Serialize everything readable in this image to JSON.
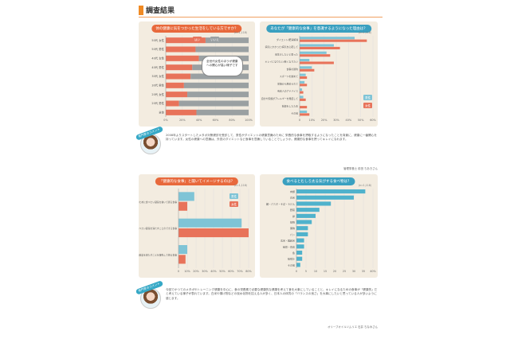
{
  "header": {
    "title": "調査結果"
  },
  "panels": {
    "q1": {
      "title": "体の健康に気をつかった生活をしている方ですか？",
      "unit": "（n=1,118）"
    },
    "q2": {
      "title": "あなたが「健康的な食事」を意識するようになった理由は？",
      "unit": "（n=1,118）"
    },
    "q3": {
      "title": "「健康的な食事」と聞いてイメージするのは？",
      "unit": "（n=1,118）"
    },
    "q4": {
      "title": "食べるとむしろ太る気がする食べ物は？",
      "unit": "（n=1,118）"
    }
  },
  "callout": {
    "text": "全世代女性のほうが健康への関心が高い様子です"
  },
  "comment1": {
    "badge": "専門家のコメント",
    "text": "2008年よりスタートしたメタボ対策健診を受診して、男性がダイエットの健康意識のために 栄養的な食事を摂取するようになったことを背景に、健康に一番関心を持っています。女性の健康への意識は、外見のダイエットなど食事を意識していることでしょうか。健康的な食事を摂ってキレイになれます。",
    "signature": "管理栄養士 前田 ちあきさん"
  },
  "comment2": {
    "badge": "専門家のコメント",
    "text": "今回でかつてのメタボやトレーニング健康を中心に、食の栄養素で必要な健康的な健康を考えて食を大事にしていることと、キレイになるための食事が「健康的」だと考えている様子が表れています。白米や揚げ物などの炭水化物を控える人が多く、日本人の体質の「バランスの良さ」を大事にしたいと思っている人が多いように感じます。",
    "signature": "オリーブオイルソムリエ 石井 ちなみさん"
  },
  "chart_data": [
    {
      "type": "bar",
      "title": "体の健康に気をつかった生活をしている方ですか？",
      "orientation": "horizontal-stacked",
      "categories": [
        "50代 女性",
        "50代 男性",
        "40代 女性",
        "40代 男性",
        "30代 女性",
        "30代 男性",
        "20代 女性",
        "20代 男性",
        "全体"
      ],
      "series": [
        {
          "name": "はい",
          "color": "#e8735a",
          "values": [
            48,
            36,
            40,
            32,
            30,
            22,
            26,
            16,
            37
          ]
        },
        {
          "name": "いいえ",
          "color": "#9aa0a2",
          "values": [
            52,
            64,
            60,
            68,
            70,
            78,
            74,
            84,
            63
          ]
        }
      ],
      "ticks": [
        "0%",
        "20%",
        "40%",
        "60%",
        "80%",
        "100%"
      ],
      "xlim": [
        0,
        100
      ]
    },
    {
      "type": "bar",
      "title": "あなたが「健康的な食事」を意識するようになった理由は？",
      "orientation": "horizontal-grouped",
      "categories": [
        "ダイエット/肥満解消",
        "病気にかかった/病気を心配して",
        "長生きしたいと思った",
        "キレイになりたい/若くなりたい",
        "食事の節約",
        "スポーツを始めて",
        "家族から薦められて",
        "有名人のアドバイス",
        "自分や家族がアレルギーを発症して",
        "妊娠をしたため",
        "その他"
      ],
      "series": [
        {
          "name": "男性",
          "color": "#7fc4d6",
          "values": [
            45,
            28,
            22,
            8,
            10,
            5,
            4,
            2,
            3,
            0,
            6
          ]
        },
        {
          "name": "女性",
          "color": "#e8735a",
          "values": [
            55,
            33,
            25,
            28,
            12,
            6,
            6,
            3,
            5,
            6,
            8
          ]
        }
      ],
      "ticks": [
        "0",
        "10%",
        "20%",
        "30%",
        "40%",
        "50%",
        "60%"
      ],
      "xlim": [
        0,
        60
      ]
    },
    {
      "type": "bar",
      "title": "「健康的な食事」と聞いてイメージするのは？",
      "orientation": "horizontal-grouped",
      "categories": [
        "体の健康のために食べたい副菜を抜いて摂る食事",
        "体の健康にもなり食べたい副菜を満たすことのできる食事",
        "体の健康よりも食べたい副菜を満たすことを優先して摂る食事"
      ],
      "series": [
        {
          "name": "男性",
          "color": "#7fc4d6",
          "values": [
            18,
            72,
            10
          ]
        },
        {
          "name": "女性",
          "color": "#e8735a",
          "values": [
            10,
            80,
            8
          ]
        }
      ],
      "ticks": [
        "0",
        "10%",
        "20%",
        "30%",
        "40%",
        "50%",
        "60%",
        "70%",
        "80%"
      ],
      "xlim": [
        0,
        80
      ]
    },
    {
      "type": "bar",
      "title": "食べるとむしろ太る気がする食べ物は？",
      "orientation": "horizontal",
      "categories": [
        "肉類",
        "白米",
        "麺・パスタ・そば・うどん",
        "野菜",
        "卵",
        "揚物",
        "果物",
        "パン",
        "玄米・雑穀米",
        "納豆・豆腐",
        "魚",
        "味噌汁",
        "その他"
      ],
      "series": [
        {
          "name": "全体",
          "color": "#4fb2cc",
          "values": [
            36,
            30,
            18,
            12,
            10,
            8,
            6,
            6,
            4,
            4,
            3,
            3,
            2
          ]
        }
      ],
      "ticks": [
        "0",
        "5",
        "10",
        "15",
        "20",
        "25",
        "30",
        "35",
        "40%"
      ],
      "xlim": [
        0,
        40
      ]
    }
  ]
}
